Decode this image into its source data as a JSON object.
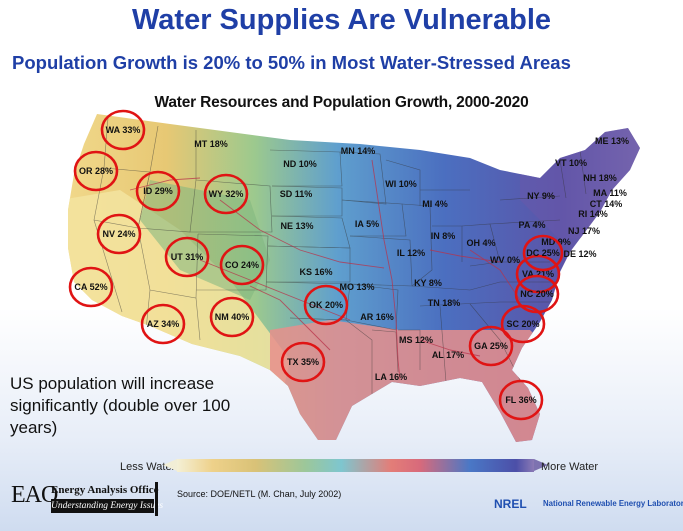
{
  "title": "Water Supplies Are Vulnerable",
  "subtitle": "Population Growth is 20% to 50% in Most Water-Stressed Areas",
  "map_title": "Water Resources and Population Growth, 2000-2020",
  "note": "US population will increase significantly (double over 100 years)",
  "legend": {
    "less": "Less Water",
    "more": "More Water",
    "colors": [
      "#f4f0d6",
      "#eed18a",
      "#9cc79a",
      "#7ec6cf",
      "#e37d78",
      "#4a78c6",
      "#4c4fa8",
      "#8b7ab5"
    ]
  },
  "source": "Source: DOE/NETL (M. Chan, July 2002)",
  "eao": {
    "mark": "EAO",
    "name": "Energy Analysis Office",
    "tagline": "Understanding Energy Issues"
  },
  "nrel": {
    "logo": "NREL",
    "name": "National Renewable Energy Laboratory"
  },
  "states": [
    {
      "label": "WA 33%",
      "circled": true
    },
    {
      "label": "OR 28%",
      "circled": true
    },
    {
      "label": "ID 29%",
      "circled": true
    },
    {
      "label": "MT 18%",
      "circled": false
    },
    {
      "label": "WY 32%",
      "circled": true
    },
    {
      "label": "NV 24%",
      "circled": true
    },
    {
      "label": "UT 31%",
      "circled": true
    },
    {
      "label": "CO 24%",
      "circled": true
    },
    {
      "label": "CA 52%",
      "circled": true
    },
    {
      "label": "AZ 34%",
      "circled": true
    },
    {
      "label": "NM 40%",
      "circled": true
    },
    {
      "label": "ND 10%",
      "circled": false
    },
    {
      "label": "SD 11%",
      "circled": false
    },
    {
      "label": "NE 13%",
      "circled": false
    },
    {
      "label": "KS 16%",
      "circled": false
    },
    {
      "label": "OK 20%",
      "circled": true
    },
    {
      "label": "TX 35%",
      "circled": true
    },
    {
      "label": "MN 14%",
      "circled": false
    },
    {
      "label": "IA 5%",
      "circled": false
    },
    {
      "label": "MO 13%",
      "circled": false
    },
    {
      "label": "AR 16%",
      "circled": false
    },
    {
      "label": "LA 16%",
      "circled": false
    },
    {
      "label": "WI 10%",
      "circled": false
    },
    {
      "label": "IL 12%",
      "circled": false
    },
    {
      "label": "MS 12%",
      "circled": false
    },
    {
      "label": "MI 4%",
      "circled": false
    },
    {
      "label": "IN 8%",
      "circled": false
    },
    {
      "label": "KY 8%",
      "circled": false
    },
    {
      "label": "TN 18%",
      "circled": false
    },
    {
      "label": "AL 17%",
      "circled": false
    },
    {
      "label": "GA 25%",
      "circled": true
    },
    {
      "label": "FL 36%",
      "circled": true
    },
    {
      "label": "OH 4%",
      "circled": false
    },
    {
      "label": "WV 0%",
      "circled": false
    },
    {
      "label": "VA 21%",
      "circled": true
    },
    {
      "label": "NC 20%",
      "circled": true
    },
    {
      "label": "SC 20%",
      "circled": true
    },
    {
      "label": "PA 4%",
      "circled": false
    },
    {
      "label": "MD 9%",
      "circled": false
    },
    {
      "label": "DC 25%",
      "circled": true
    },
    {
      "label": "DE 12%",
      "circled": false
    },
    {
      "label": "NJ 17%",
      "circled": false
    },
    {
      "label": "NY 9%",
      "circled": false
    },
    {
      "label": "CT 14%",
      "circled": false
    },
    {
      "label": "RI 14%",
      "circled": false
    },
    {
      "label": "MA 11%",
      "circled": false
    },
    {
      "label": "VT 10%",
      "circled": false
    },
    {
      "label": "NH 18%",
      "circled": false
    },
    {
      "label": "ME 13%",
      "circled": false
    }
  ]
}
